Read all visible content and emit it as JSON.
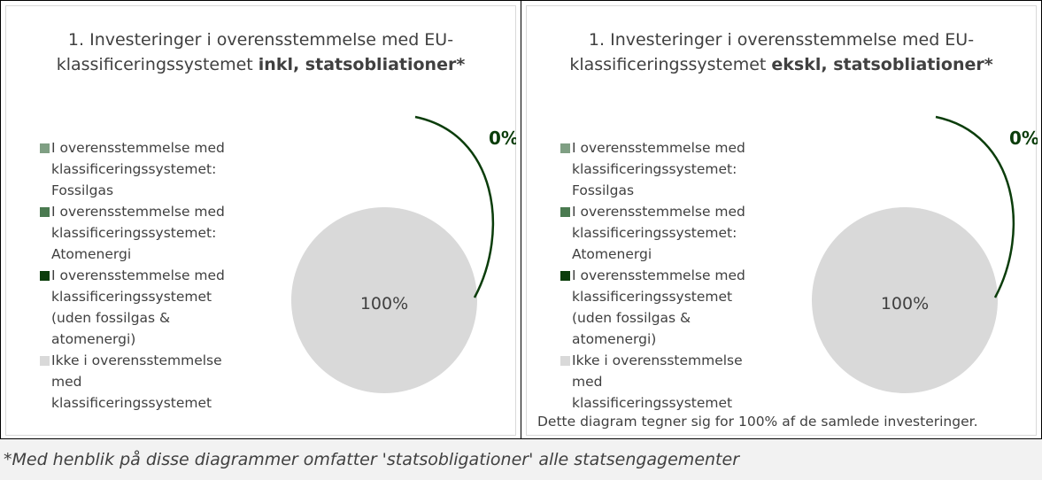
{
  "chart_data": [
    {
      "type": "pie",
      "title": "1. Investeringer i overensstemmelse med EU-klassificeringssystemet",
      "title_bold": "inkl, statsobliationer*",
      "categories": [
        "I overensstemmelse med klassificeringssystemet: Fossilgas",
        "I overensstemmelse med klassificeringssystemet: Atomenergi",
        "I overensstemmelse med klassificeringssystemet (uden fossilgas & atomenergi)",
        "Ikke i overensstemmelse med klassificeringssystemet"
      ],
      "values": [
        0,
        0,
        0,
        100
      ],
      "value_labels": [
        null,
        null,
        "0%",
        "100%"
      ],
      "colors": [
        "#7f9f83",
        "#4a7a50",
        "#0b3d0b",
        "#d9d9d9"
      ]
    },
    {
      "type": "pie",
      "title": "1. Investeringer i overensstemmelse med EU-klassificeringssystemet",
      "title_bold": "ekskl, statsobliationer*",
      "categories": [
        "I overensstemmelse med klassificeringssystemet: Fossilgas",
        "I overensstemmelse med klassificeringssystemet: Atomenergi",
        "I overensstemmelse med klassificeringssystemet (uden fossilgas & atomenergi)",
        "Ikke i overensstemmelse med klassificeringssystemet"
      ],
      "values": [
        0,
        0,
        0,
        100
      ],
      "value_labels": [
        null,
        null,
        "0%",
        "100%"
      ],
      "colors": [
        "#7f9f83",
        "#4a7a50",
        "#0b3d0b",
        "#d9d9d9"
      ],
      "note": "Dette diagram tegner sig for 100% af de samlede investeringer."
    }
  ],
  "footnote": "*Med henblik på disse diagrammer omfatter 'statsobligationer' alle statsengagementer"
}
